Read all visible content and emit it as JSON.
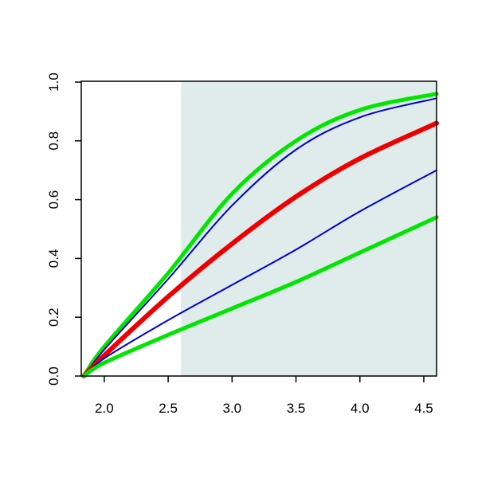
{
  "chart_data": {
    "type": "line",
    "x": [
      1.84,
      2.0,
      2.5,
      3.0,
      3.5,
      4.0,
      4.6
    ],
    "series": [
      {
        "color": "#00e600",
        "width": 5,
        "values": [
          0,
          0.1,
          0.35,
          0.62,
          0.8,
          0.905,
          0.96
        ]
      },
      {
        "color": "#0000cd",
        "width": 2,
        "values": [
          0,
          0.09,
          0.33,
          0.58,
          0.77,
          0.88,
          0.945
        ]
      },
      {
        "color": "#ee0000",
        "width": 6,
        "values": [
          0,
          0.07,
          0.27,
          0.45,
          0.61,
          0.74,
          0.86
        ]
      },
      {
        "color": "#0000cd",
        "width": 2,
        "values": [
          0,
          0.06,
          0.19,
          0.31,
          0.43,
          0.56,
          0.7
        ]
      },
      {
        "color": "#00e600",
        "width": 5,
        "values": [
          0,
          0.045,
          0.14,
          0.23,
          0.32,
          0.42,
          0.54
        ]
      }
    ],
    "shade_from": 2.6,
    "shade_color": "#dfeceb",
    "xlim": [
      1.82,
      4.6
    ],
    "ylim": [
      0,
      1.0
    ],
    "xticks": [
      {
        "value": 2,
        "label": "2.0"
      },
      2.5,
      {
        "value": 3,
        "label": "3.0"
      },
      3.5,
      {
        "value": 4,
        "label": "4.0"
      },
      4.5
    ],
    "yticks": [
      {
        "value": 0,
        "label": "0.0"
      },
      0.2,
      0.4,
      0.6,
      0.8,
      {
        "value": 1,
        "label": "1.0"
      }
    ]
  }
}
